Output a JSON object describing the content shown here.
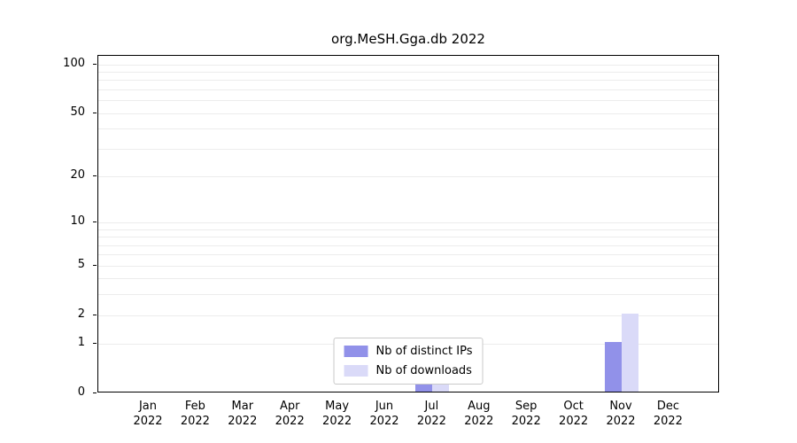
{
  "chart_data": {
    "type": "bar",
    "title": "org.MeSH.Gga.db 2022",
    "categories": [
      {
        "month": "Jan",
        "year": "2022"
      },
      {
        "month": "Feb",
        "year": "2022"
      },
      {
        "month": "Mar",
        "year": "2022"
      },
      {
        "month": "Apr",
        "year": "2022"
      },
      {
        "month": "May",
        "year": "2022"
      },
      {
        "month": "Jun",
        "year": "2022"
      },
      {
        "month": "Jul",
        "year": "2022"
      },
      {
        "month": "Aug",
        "year": "2022"
      },
      {
        "month": "Sep",
        "year": "2022"
      },
      {
        "month": "Oct",
        "year": "2022"
      },
      {
        "month": "Nov",
        "year": "2022"
      },
      {
        "month": "Dec",
        "year": "2022"
      }
    ],
    "series": [
      {
        "name": "Nb of distinct IPs",
        "color": "#9191e9",
        "values": [
          0,
          0,
          0,
          0,
          0,
          0,
          1,
          0,
          0,
          0,
          1,
          0
        ]
      },
      {
        "name": "Nb of downloads",
        "color": "#dadaf8",
        "values": [
          0,
          0,
          0,
          0,
          0,
          0,
          1,
          0,
          0,
          0,
          2,
          0
        ]
      }
    ],
    "yticks": [
      0,
      1,
      2,
      5,
      10,
      20,
      50,
      100
    ],
    "gridline_values": [
      1,
      2,
      3,
      4,
      5,
      6,
      7,
      8,
      9,
      10,
      20,
      30,
      40,
      50,
      60,
      70,
      80,
      90,
      100
    ],
    "scale": "log1p",
    "ylim": [
      0,
      112
    ],
    "grid": true,
    "legend_position": "bottom-center",
    "colors": {
      "grid": "#ececec",
      "axis": "#000000",
      "background": "#ffffff"
    }
  }
}
